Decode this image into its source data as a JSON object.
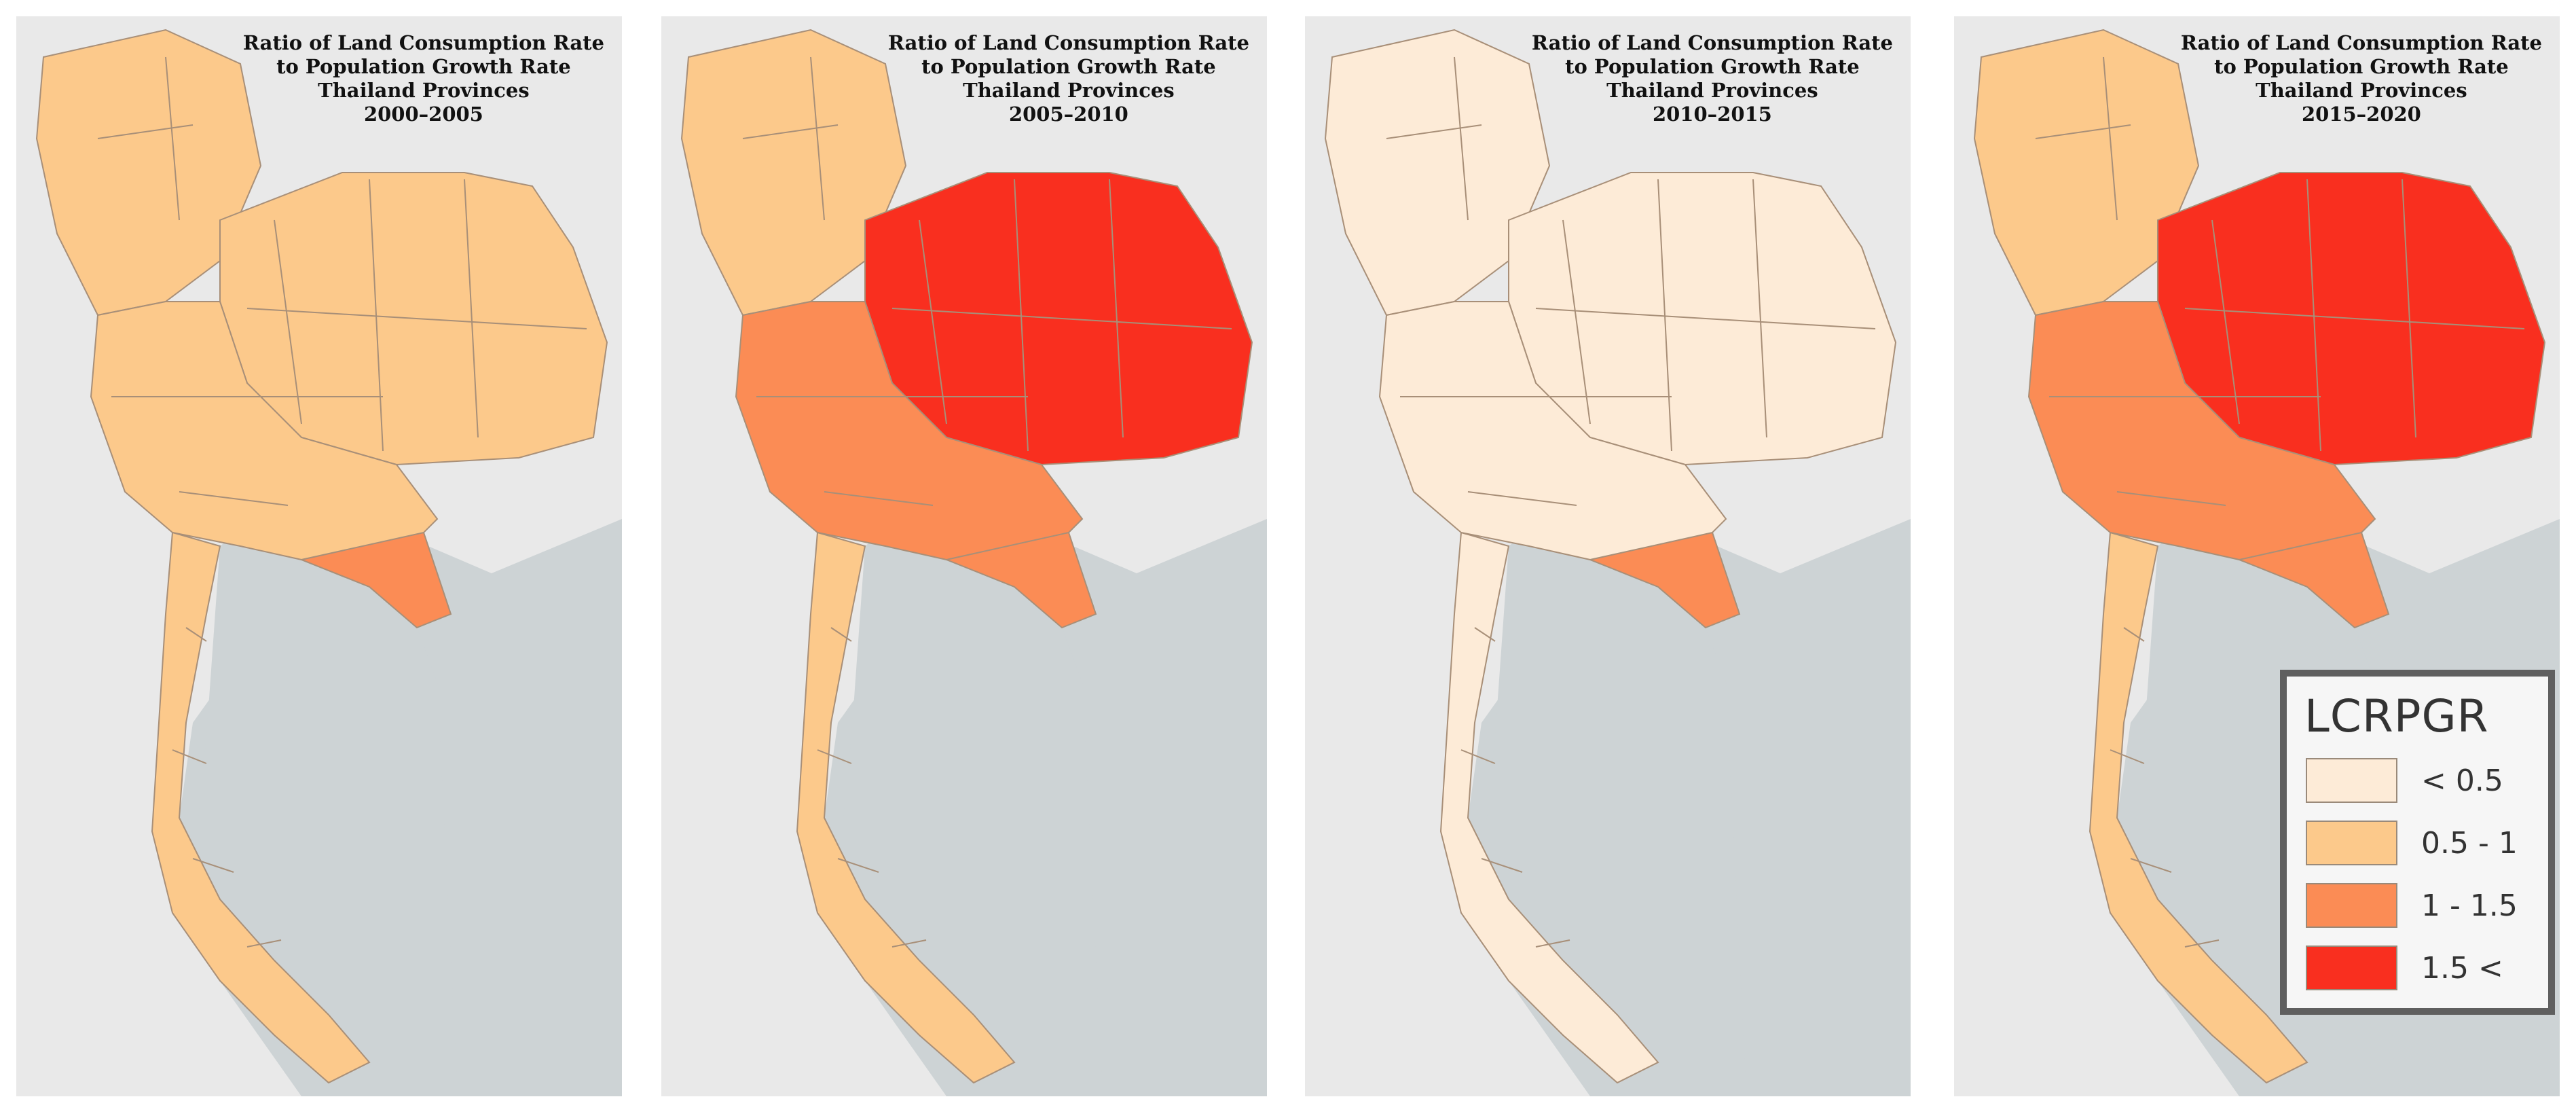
{
  "colors": {
    "sea": "#cdd3d5",
    "land_outside": "#e9e9e9",
    "background": "#ececec",
    "border": "#a88f78",
    "classes": [
      "#fdebd7",
      "#fcc98b",
      "#fb8c55",
      "#f92f1f"
    ]
  },
  "panels": [
    {
      "title": [
        "Ratio of Land Consumption  Rate",
        "to Population Growth Rate",
        "Thailand Provinces",
        "2000–2005"
      ],
      "dominant_class": 1,
      "north_class": 1,
      "south_class": 1
    },
    {
      "title": [
        "Ratio of Land Consumption  Rate",
        "to Population Growth Rate",
        "Thailand Provinces",
        "2005–2010"
      ],
      "dominant_class": 3,
      "north_class": 1,
      "south_class": 1
    },
    {
      "title": [
        "Ratio of Land Consumption  Rate",
        "to Population Growth Rate",
        "Thailand Provinces",
        "2010–2015"
      ],
      "dominant_class": 0,
      "north_class": 0,
      "south_class": 0
    },
    {
      "title": [
        "Ratio of Land Consumption  Rate",
        "to Population Growth Rate",
        "Thailand Provinces",
        "2015–2020"
      ],
      "dominant_class": 3,
      "north_class": 1,
      "south_class": 1
    }
  ],
  "legend": {
    "title": "LCRPGR",
    "items": [
      {
        "label": "< 0.5",
        "class": 0
      },
      {
        "label": "0.5 - 1",
        "class": 1
      },
      {
        "label": "1 - 1.5",
        "class": 2
      },
      {
        "label": "1.5 <",
        "class": 3
      }
    ]
  }
}
